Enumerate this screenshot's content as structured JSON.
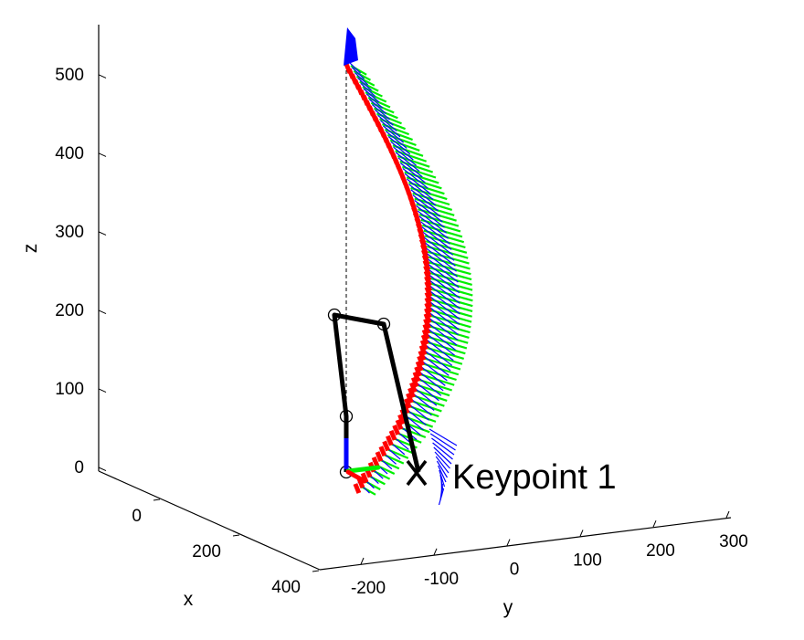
{
  "chart_data": {
    "type": "scatter",
    "view": "3d",
    "axes": {
      "x": {
        "label": "x",
        "ticks": [
          0,
          200,
          400
        ]
      },
      "y": {
        "label": "y",
        "ticks": [
          -200,
          -100,
          0,
          100,
          200,
          300
        ]
      },
      "z": {
        "label": "z",
        "ticks": [
          0,
          100,
          200,
          300,
          400,
          500
        ]
      }
    },
    "grid": false,
    "legend": "none",
    "annotation": {
      "text": "Keypoint 1",
      "marker": "x"
    },
    "colors": {
      "frame_x": "#ff0000",
      "frame_y": "#00ee00",
      "frame_z": "#0000ff",
      "linkage": "#000000"
    }
  }
}
